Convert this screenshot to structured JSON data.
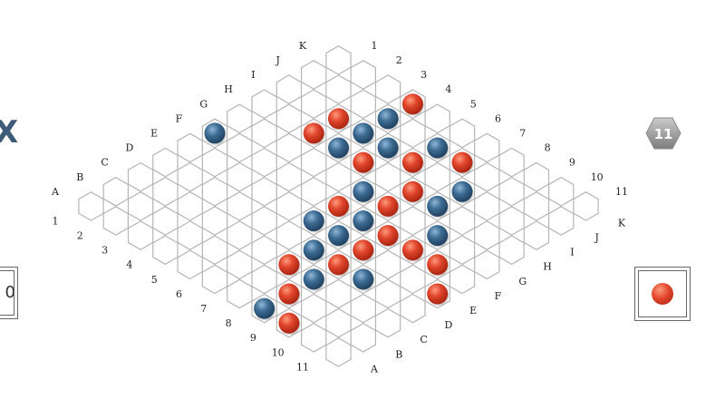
{
  "game": "Hex",
  "logo_fragment": "X",
  "left_panel_text": "0",
  "board_size_badge": "11",
  "turn_indicator": "red",
  "colors": {
    "red_stone": "#e0452c",
    "blue_stone": "#3d6c94",
    "grid_line": "#b5b5b5",
    "label": "#222222",
    "badge": "#9a9a9a"
  },
  "column_labels": [
    "A",
    "B",
    "C",
    "D",
    "E",
    "F",
    "G",
    "H",
    "I",
    "J",
    "K"
  ],
  "row_labels": [
    "1",
    "2",
    "3",
    "4",
    "5",
    "6",
    "7",
    "8",
    "9",
    "10",
    "11"
  ],
  "stones": [
    {
      "col": "J",
      "row": 4,
      "color": "blue"
    },
    {
      "col": "K",
      "row": 4,
      "color": "red"
    },
    {
      "col": "I",
      "row": 4,
      "color": "blue"
    },
    {
      "col": "I",
      "row": 3,
      "color": "red"
    },
    {
      "col": "J",
      "row": 6,
      "color": "blue"
    },
    {
      "col": "J",
      "row": 7,
      "color": "red"
    },
    {
      "col": "I",
      "row": 5,
      "color": "blue"
    },
    {
      "col": "I",
      "row": 6,
      "color": "red"
    },
    {
      "col": "H",
      "row": 4,
      "color": "blue"
    },
    {
      "col": "H",
      "row": 3,
      "color": "red"
    },
    {
      "col": "H",
      "row": 5,
      "color": "red"
    },
    {
      "col": "I",
      "row": 8,
      "color": "blue"
    },
    {
      "col": "H",
      "row": 7,
      "color": "red"
    },
    {
      "col": "F",
      "row": 1,
      "color": "blue"
    },
    {
      "col": "C",
      "row": 8,
      "color": "blue"
    },
    {
      "col": "H",
      "row": 8,
      "color": "blue"
    },
    {
      "col": "G",
      "row": 6,
      "color": "blue"
    },
    {
      "col": "G",
      "row": 7,
      "color": "red"
    },
    {
      "col": "F",
      "row": 8,
      "color": "red"
    },
    {
      "col": "F",
      "row": 6,
      "color": "red"
    },
    {
      "col": "F",
      "row": 7,
      "color": "blue"
    },
    {
      "col": "E",
      "row": 7,
      "color": "blue"
    },
    {
      "col": "E",
      "row": 8,
      "color": "red"
    },
    {
      "col": "G",
      "row": 9,
      "color": "blue"
    },
    {
      "col": "F",
      "row": 9,
      "color": "red"
    },
    {
      "col": "F",
      "row": 10,
      "color": "red"
    },
    {
      "col": "E",
      "row": 11,
      "color": "red"
    },
    {
      "col": "D",
      "row": 9,
      "color": "blue"
    },
    {
      "col": "E",
      "row": 6,
      "color": "blue"
    },
    {
      "col": "D",
      "row": 7,
      "color": "blue"
    },
    {
      "col": "D",
      "row": 8,
      "color": "red"
    },
    {
      "col": "C",
      "row": 7,
      "color": "red"
    },
    {
      "col": "B",
      "row": 8,
      "color": "red"
    },
    {
      "col": "A",
      "row": 9,
      "color": "red"
    },
    {
      "col": "A",
      "row": 8,
      "color": "blue"
    }
  ]
}
